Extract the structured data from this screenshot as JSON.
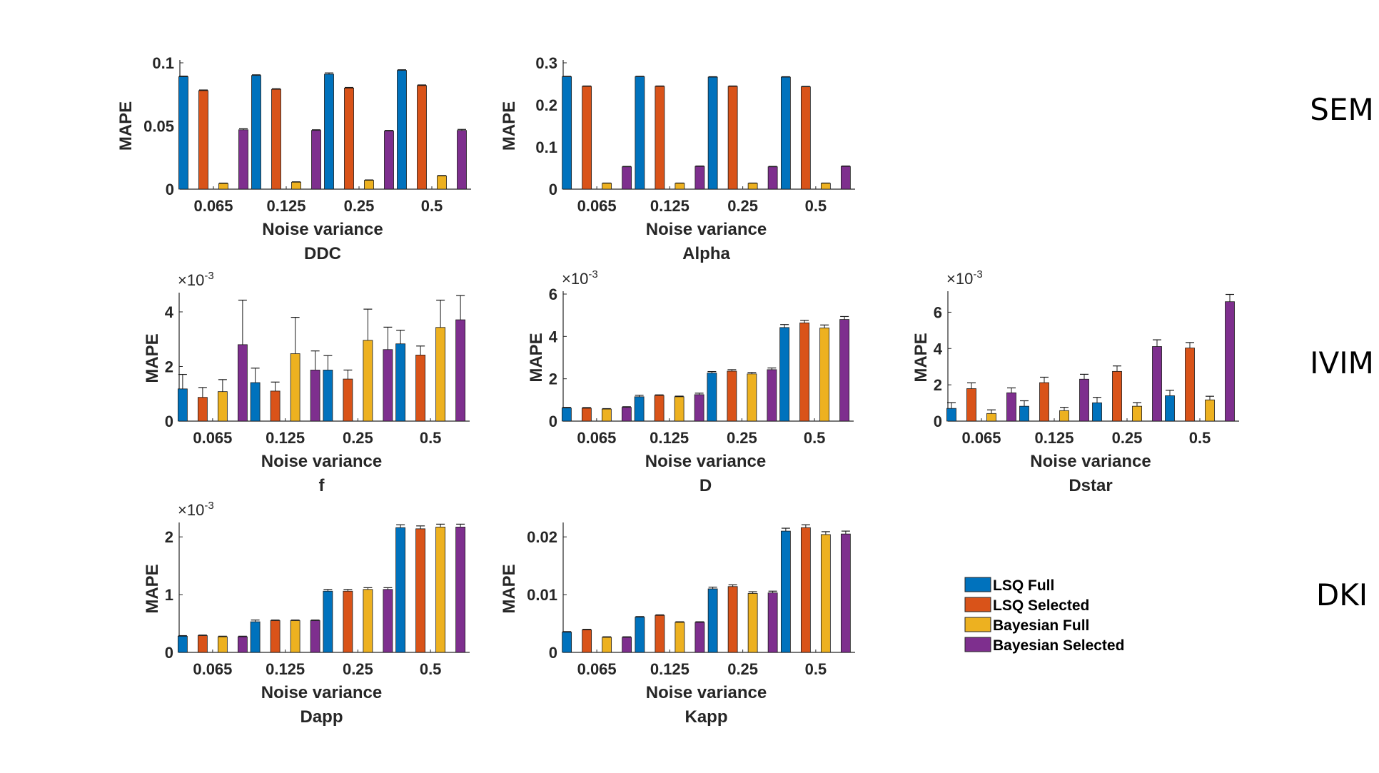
{
  "legend": {
    "series": [
      {
        "name": "LSQ Full",
        "color": "#0072BD"
      },
      {
        "name": "LSQ Selected",
        "color": "#D95319"
      },
      {
        "name": "Bayesian Full",
        "color": "#EDB120"
      },
      {
        "name": "Bayesian Selected",
        "color": "#7E2F8E"
      }
    ]
  },
  "row_labels": [
    {
      "label": "SEM"
    },
    {
      "label": "IVIM"
    },
    {
      "label": "DKI"
    }
  ],
  "chart_data": [
    {
      "type": "bar",
      "group": "SEM",
      "title": "DDC",
      "xlabel": "Noise variance",
      "ylabel": "MAPE",
      "exponent_label": "",
      "categories": [
        "0.065",
        "0.125",
        "0.25",
        "0.5"
      ],
      "ylim": [
        0,
        0.1
      ],
      "yticks": [
        0,
        0.05,
        0.1
      ],
      "ytick_labels": [
        "0",
        "0.05",
        "0.1"
      ],
      "series": [
        {
          "name": "LSQ Full",
          "values": [
            0.089,
            0.09,
            0.091,
            0.094
          ],
          "errors": [
            0.0005,
            0.0005,
            0.001,
            0.0005
          ]
        },
        {
          "name": "LSQ Selected",
          "values": [
            0.078,
            0.079,
            0.08,
            0.082
          ],
          "errors": [
            0.0005,
            0.0005,
            0.0005,
            0.0005
          ]
        },
        {
          "name": "Bayesian Full",
          "values": [
            0.0045,
            0.0055,
            0.007,
            0.0105
          ],
          "errors": [
            0.0003,
            0.0003,
            0.0003,
            0.0003
          ]
        },
        {
          "name": "Bayesian Selected",
          "values": [
            0.047,
            0.0465,
            0.046,
            0.0465
          ],
          "errors": [
            0.0008,
            0.0005,
            0.0005,
            0.0008
          ]
        }
      ]
    },
    {
      "type": "bar",
      "group": "SEM",
      "title": "Alpha",
      "xlabel": "Noise variance",
      "ylabel": "MAPE",
      "exponent_label": "",
      "categories": [
        "0.065",
        "0.125",
        "0.25",
        "0.5"
      ],
      "ylim": [
        0,
        0.3
      ],
      "yticks": [
        0,
        0.1,
        0.2,
        0.3
      ],
      "ytick_labels": [
        "0",
        "0.1",
        "0.2",
        "0.3"
      ],
      "series": [
        {
          "name": "LSQ Full",
          "values": [
            0.267,
            0.267,
            0.266,
            0.266
          ],
          "errors": [
            0.001,
            0.001,
            0.001,
            0.001
          ]
        },
        {
          "name": "LSQ Selected",
          "values": [
            0.244,
            0.244,
            0.244,
            0.243
          ],
          "errors": [
            0.001,
            0.001,
            0.001,
            0.001
          ]
        },
        {
          "name": "Bayesian Full",
          "values": [
            0.014,
            0.014,
            0.014,
            0.014
          ],
          "errors": [
            0.0005,
            0.0005,
            0.0005,
            0.0005
          ]
        },
        {
          "name": "Bayesian Selected",
          "values": [
            0.053,
            0.054,
            0.053,
            0.054
          ],
          "errors": [
            0.001,
            0.001,
            0.001,
            0.001
          ]
        }
      ]
    },
    {
      "type": "bar",
      "group": "IVIM",
      "title": "f",
      "xlabel": "Noise variance",
      "ylabel": "MAPE",
      "exponent_label": "×10^-3",
      "categories": [
        "0.065",
        "0.125",
        "0.25",
        "0.5"
      ],
      "ylim": [
        0,
        4.6
      ],
      "yticks": [
        0,
        2,
        4
      ],
      "ytick_labels": [
        "0",
        "2",
        "4"
      ],
      "series": [
        {
          "name": "LSQ Full",
          "values": [
            1.18,
            1.41,
            1.87,
            2.83
          ],
          "errors": [
            0.53,
            0.53,
            0.53,
            0.5
          ]
        },
        {
          "name": "LSQ Selected",
          "values": [
            0.87,
            1.1,
            1.54,
            2.42
          ],
          "errors": [
            0.36,
            0.33,
            0.33,
            0.33
          ]
        },
        {
          "name": "Bayesian Full",
          "values": [
            1.08,
            2.47,
            2.96,
            3.43
          ],
          "errors": [
            0.44,
            1.33,
            1.14,
            1.0
          ]
        },
        {
          "name": "Bayesian Selected",
          "values": [
            2.8,
            1.87,
            2.62,
            3.71
          ],
          "errors": [
            1.63,
            0.7,
            0.82,
            0.89
          ]
        }
      ]
    },
    {
      "type": "bar",
      "group": "IVIM",
      "title": "D",
      "xlabel": "Noise variance",
      "ylabel": "MAPE",
      "exponent_label": "×10^-3",
      "categories": [
        "0.065",
        "0.125",
        "0.25",
        "0.5"
      ],
      "ylim": [
        0,
        6
      ],
      "yticks": [
        0,
        2,
        4,
        6
      ],
      "ytick_labels": [
        "0",
        "2",
        "4",
        "6"
      ],
      "series": [
        {
          "name": "LSQ Full",
          "values": [
            0.62,
            1.15,
            2.27,
            4.42
          ],
          "errors": [
            0.03,
            0.07,
            0.07,
            0.14
          ]
        },
        {
          "name": "LSQ Selected",
          "values": [
            0.61,
            1.21,
            2.36,
            4.64
          ],
          "errors": [
            0.03,
            0.03,
            0.07,
            0.12
          ]
        },
        {
          "name": "Bayesian Full",
          "values": [
            0.57,
            1.15,
            2.23,
            4.4
          ],
          "errors": [
            0.02,
            0.03,
            0.07,
            0.14
          ]
        },
        {
          "name": "Bayesian Selected",
          "values": [
            0.65,
            1.25,
            2.43,
            4.8
          ],
          "errors": [
            0.03,
            0.07,
            0.08,
            0.14
          ]
        }
      ]
    },
    {
      "type": "bar",
      "group": "IVIM",
      "title": "Dstar",
      "xlabel": "Noise variance",
      "ylabel": "MAPE",
      "exponent_label": "×10^-3",
      "categories": [
        "0.065",
        "0.125",
        "0.25",
        "0.5"
      ],
      "ylim": [
        0,
        7
      ],
      "yticks": [
        0,
        2,
        4,
        6
      ],
      "ytick_labels": [
        "0",
        "2",
        "4",
        "6"
      ],
      "series": [
        {
          "name": "LSQ Full",
          "values": [
            0.7,
            0.82,
            1.01,
            1.4
          ],
          "errors": [
            0.32,
            0.3,
            0.3,
            0.3
          ]
        },
        {
          "name": "LSQ Selected",
          "values": [
            1.79,
            2.12,
            2.74,
            4.03
          ],
          "errors": [
            0.32,
            0.3,
            0.3,
            0.3
          ]
        },
        {
          "name": "Bayesian Full",
          "values": [
            0.42,
            0.58,
            0.82,
            1.17
          ],
          "errors": [
            0.2,
            0.18,
            0.2,
            0.2
          ]
        },
        {
          "name": "Bayesian Selected",
          "values": [
            1.56,
            2.31,
            4.11,
            6.58
          ],
          "errors": [
            0.27,
            0.27,
            0.37,
            0.4
          ]
        }
      ]
    },
    {
      "type": "bar",
      "group": "DKI",
      "title": "Dapp",
      "xlabel": "Noise variance",
      "ylabel": "MAPE",
      "exponent_label": "×10^-3",
      "categories": [
        "0.065",
        "0.125",
        "0.25",
        "0.5"
      ],
      "ylim": [
        0,
        2.2
      ],
      "yticks": [
        0,
        1,
        2
      ],
      "ytick_labels": [
        "0",
        "1",
        "2"
      ],
      "series": [
        {
          "name": "LSQ Full",
          "values": [
            0.28,
            0.53,
            1.06,
            2.16
          ],
          "errors": [
            0.01,
            0.03,
            0.03,
            0.05
          ]
        },
        {
          "name": "LSQ Selected",
          "values": [
            0.29,
            0.55,
            1.06,
            2.14
          ],
          "errors": [
            0.01,
            0.01,
            0.03,
            0.05
          ]
        },
        {
          "name": "Bayesian Full",
          "values": [
            0.27,
            0.55,
            1.09,
            2.17
          ],
          "errors": [
            0.01,
            0.01,
            0.03,
            0.05
          ]
        },
        {
          "name": "Bayesian Selected",
          "values": [
            0.27,
            0.55,
            1.09,
            2.17
          ],
          "errors": [
            0.01,
            0.01,
            0.03,
            0.05
          ]
        }
      ]
    },
    {
      "type": "bar",
      "group": "DKI",
      "title": "Kapp",
      "xlabel": "Noise variance",
      "ylabel": "MAPE",
      "exponent_label": "",
      "categories": [
        "0.065",
        "0.125",
        "0.25",
        "0.5"
      ],
      "ylim": [
        0,
        0.022
      ],
      "yticks": [
        0,
        0.01,
        0.02
      ],
      "ytick_labels": [
        "0",
        "0.01",
        "0.02"
      ],
      "series": [
        {
          "name": "LSQ Full",
          "values": [
            0.0035,
            0.0061,
            0.011,
            0.021
          ],
          "errors": [
            0.0001,
            0.0001,
            0.0003,
            0.0005
          ]
        },
        {
          "name": "LSQ Selected",
          "values": [
            0.0039,
            0.0064,
            0.0114,
            0.0216
          ],
          "errors": [
            0.0001,
            0.0001,
            0.0003,
            0.0005
          ]
        },
        {
          "name": "Bayesian Full",
          "values": [
            0.0026,
            0.0052,
            0.0102,
            0.0204
          ],
          "errors": [
            0.0001,
            0.0001,
            0.0003,
            0.0005
          ]
        },
        {
          "name": "Bayesian Selected",
          "values": [
            0.0026,
            0.0052,
            0.0103,
            0.0205
          ],
          "errors": [
            0.0001,
            0.0001,
            0.0003,
            0.0005
          ]
        }
      ]
    }
  ]
}
